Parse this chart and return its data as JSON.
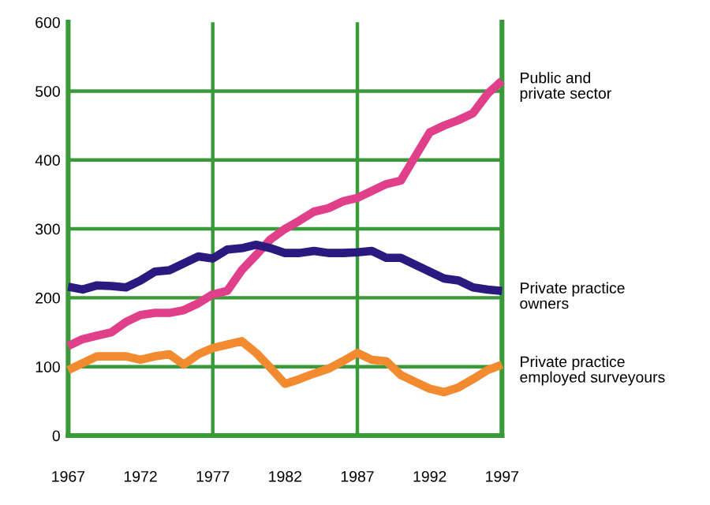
{
  "chart_data": {
    "type": "line",
    "x": [
      1967,
      1968,
      1969,
      1970,
      1971,
      1972,
      1973,
      1974,
      1975,
      1976,
      1977,
      1978,
      1979,
      1980,
      1981,
      1982,
      1983,
      1984,
      1985,
      1986,
      1987,
      1988,
      1989,
      1990,
      1991,
      1992,
      1993,
      1994,
      1995,
      1996,
      1997
    ],
    "series": [
      {
        "name": "Public and\nprivate sector",
        "color": "#e0408a",
        "values": [
          130,
          140,
          145,
          150,
          165,
          175,
          178,
          178,
          182,
          192,
          205,
          210,
          240,
          262,
          285,
          300,
          312,
          325,
          330,
          340,
          345,
          355,
          365,
          370,
          405,
          440,
          450,
          458,
          468,
          496,
          515
        ]
      },
      {
        "name": "Private practice\nowners",
        "color": "#2a1a80",
        "values": [
          216,
          212,
          218,
          217,
          215,
          225,
          238,
          240,
          250,
          260,
          257,
          270,
          272,
          277,
          272,
          265,
          265,
          268,
          265,
          265,
          266,
          268,
          258,
          258,
          248,
          238,
          228,
          225,
          215,
          212,
          210
        ]
      },
      {
        "name": "Private practice\nemployed surveyours",
        "color": "#f28a30",
        "values": [
          95,
          105,
          115,
          115,
          115,
          110,
          115,
          118,
          103,
          118,
          127,
          132,
          137,
          120,
          98,
          75,
          82,
          90,
          97,
          108,
          120,
          110,
          108,
          88,
          78,
          68,
          63,
          70,
          82,
          95,
          103
        ]
      }
    ],
    "xlim": [
      1967,
      1997
    ],
    "xticks": [
      1967,
      1972,
      1977,
      1982,
      1987,
      1992,
      1997
    ],
    "ylim": [
      0,
      600
    ],
    "yticks": [
      0,
      100,
      200,
      300,
      400,
      500,
      600
    ],
    "grid": "y",
    "ref_lines": [
      {
        "axis": "x",
        "value": 1977,
        "color": "#3a9a3a"
      },
      {
        "axis": "x",
        "value": 1987,
        "color": "#3a9a3a"
      }
    ],
    "legend": false,
    "marker": "none",
    "line_style": "solid"
  }
}
